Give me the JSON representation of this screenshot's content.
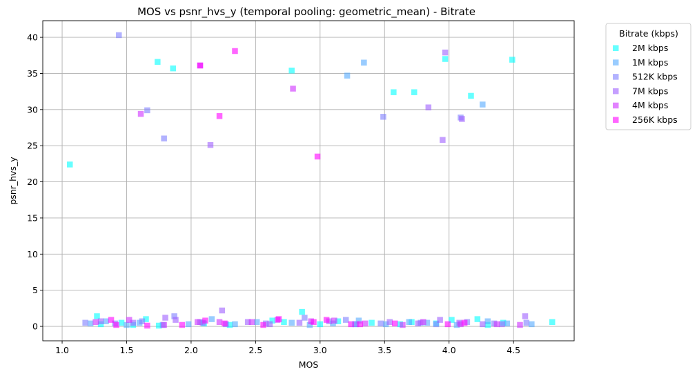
{
  "chart_data": {
    "type": "scatter",
    "title": "MOS vs psnr_hvs_y (temporal pooling: geometric_mean) - Bitrate",
    "xlabel": "MOS",
    "ylabel": "psnr_hvs_y",
    "xlim": [
      0.85,
      4.97
    ],
    "ylim": [
      -2.0,
      42.3
    ],
    "xticks": [
      1.0,
      1.5,
      2.0,
      2.5,
      3.0,
      3.5,
      4.0,
      4.5
    ],
    "xtick_labels": [
      "1.0",
      "1.5",
      "2.0",
      "2.5",
      "3.0",
      "3.5",
      "4.0",
      "4.5"
    ],
    "yticks": [
      0,
      5,
      10,
      15,
      20,
      25,
      30,
      35,
      40
    ],
    "ytick_labels": [
      "0",
      "5",
      "10",
      "15",
      "20",
      "25",
      "30",
      "35",
      "40"
    ],
    "grid": true,
    "legend": {
      "title": "Bitrate (kbps)",
      "placement": "outside-upper-right"
    },
    "marker": "square",
    "series": [
      {
        "name": "2M kbps",
        "color": "#00ffff",
        "x": [
          1.06,
          1.74,
          1.86,
          2.78,
          3.57,
          3.73,
          3.97,
          4.17,
          4.49,
          1.27,
          1.3,
          1.46,
          1.55,
          1.65,
          1.75,
          2.1,
          2.3,
          2.63,
          2.72,
          2.86,
          3.0,
          3.14,
          3.27,
          3.4,
          3.62,
          3.71,
          3.9,
          4.02,
          4.22,
          4.3,
          4.42,
          4.8
        ],
        "y": [
          22.4,
          36.6,
          35.7,
          35.4,
          32.4,
          32.4,
          37.0,
          31.9,
          36.9,
          1.4,
          0.3,
          0.5,
          0.2,
          1.0,
          0.1,
          0.4,
          0.2,
          0.8,
          0.6,
          2.0,
          0.3,
          0.7,
          0.3,
          0.5,
          0.3,
          0.6,
          0.4,
          0.9,
          1.0,
          0.2,
          0.5,
          0.6
        ]
      },
      {
        "name": "1M kbps",
        "color": "#55aaff",
        "x": [
          3.21,
          3.34,
          4.26,
          1.22,
          1.34,
          1.5,
          1.6,
          1.78,
          1.98,
          2.16,
          2.34,
          2.51,
          2.78,
          2.92,
          3.1,
          3.3,
          3.51,
          3.69,
          3.83,
          4.06,
          4.3,
          4.45,
          4.64
        ],
        "y": [
          34.7,
          36.5,
          30.7,
          0.4,
          0.7,
          0.2,
          0.5,
          0.2,
          0.3,
          1.0,
          0.3,
          0.6,
          0.5,
          0.2,
          0.4,
          0.8,
          0.3,
          0.6,
          0.5,
          0.2,
          0.7,
          0.4,
          0.3
        ]
      },
      {
        "name": "512K kbps",
        "color": "#7f7fff",
        "x": [
          1.44,
          1.66,
          1.79,
          3.49,
          4.09,
          1.18,
          1.41,
          1.62,
          1.87,
          2.07,
          2.27,
          2.58,
          2.88,
          3.2,
          3.47,
          3.78,
          3.9,
          4.14,
          4.35,
          4.6
        ],
        "y": [
          40.3,
          29.9,
          26.0,
          29.0,
          28.9,
          0.5,
          0.4,
          0.7,
          1.4,
          0.6,
          0.3,
          0.4,
          1.2,
          0.9,
          0.4,
          0.5,
          0.3,
          0.6,
          0.4,
          0.5
        ]
      },
      {
        "name": "7M kbps",
        "color": "#9f5fff",
        "x": [
          2.15,
          3.84,
          3.95,
          3.97,
          4.1,
          1.3,
          1.55,
          1.8,
          1.88,
          2.09,
          2.24,
          2.44,
          2.61,
          2.84,
          3.07,
          3.28,
          3.54,
          3.76,
          3.93,
          4.08,
          4.26,
          4.41,
          4.59
        ],
        "y": [
          25.1,
          30.3,
          25.8,
          37.9,
          28.7,
          0.7,
          0.5,
          1.2,
          0.9,
          0.5,
          2.2,
          0.6,
          0.3,
          0.5,
          0.7,
          0.3,
          0.6,
          0.4,
          0.9,
          0.5,
          0.3,
          0.3,
          1.4
        ]
      },
      {
        "name": "4M kbps",
        "color": "#cf2fff",
        "x": [
          1.61,
          2.07,
          2.79,
          1.26,
          1.52,
          1.79,
          2.05,
          2.22,
          2.47,
          2.67,
          2.93,
          3.11,
          3.35,
          3.64,
          3.8,
          4.09,
          4.37,
          4.55
        ],
        "y": [
          29.4,
          36.1,
          32.9,
          0.6,
          0.9,
          0.2,
          0.6,
          0.6,
          0.6,
          0.9,
          0.7,
          0.8,
          0.4,
          0.2,
          0.6,
          0.3,
          0.3,
          0.2
        ]
      },
      {
        "name": "256K kbps",
        "color": "#ff00ff",
        "x": [
          2.07,
          2.22,
          2.34,
          2.98,
          1.38,
          1.42,
          1.66,
          1.93,
          2.11,
          2.26,
          2.56,
          2.68,
          2.95,
          3.05,
          3.24,
          3.31,
          3.58,
          3.99,
          4.12
        ],
        "y": [
          36.1,
          29.1,
          38.1,
          23.5,
          0.9,
          0.2,
          0.1,
          0.2,
          0.8,
          0.4,
          0.2,
          1.0,
          0.6,
          0.9,
          0.3,
          0.3,
          0.4,
          0.3,
          0.5
        ]
      }
    ]
  }
}
